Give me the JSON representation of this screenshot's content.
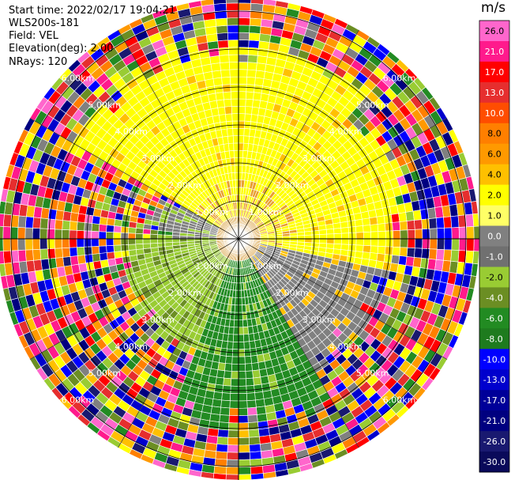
{
  "info": {
    "start_time": "Start time: 2022/02/17 19:04:21",
    "instrument": "WLS200s-181",
    "field": "Field: VEL",
    "elevation": "Elevation(deg): 2.00",
    "nrays": "NRays: 120"
  },
  "chart_data": {
    "type": "ppi",
    "title": "Start time: 2022/02/17 19:04:21",
    "field": "VEL",
    "elevation_deg": 2.0,
    "n_rays": 120,
    "range_unit": "km",
    "range_rings_km": [
      1,
      2,
      3,
      4,
      5,
      6
    ],
    "range_labels": [
      "1.00km",
      "2.00km",
      "3.00km",
      "4.00km",
      "5.00km",
      "6.00km"
    ],
    "max_range_km": 6.6,
    "colorbar": {
      "unit": "m/s",
      "ticks": [
        "26.0",
        "21.0",
        "17.0",
        "13.0",
        "10.0",
        "8.0",
        "6.0",
        "4.0",
        "2.0",
        "1.0",
        "0.0",
        "-1.0",
        "-2.0",
        "-4.0",
        "-6.0",
        "-8.0",
        "-10.0",
        "-13.0",
        "-17.0",
        "-21.0",
        "-26.0",
        "-30.0"
      ],
      "bin_colors": [
        "#ff66cc",
        "#ff1a8c",
        "#ff0000",
        "#e62e2e",
        "#ff4d00",
        "#ff7f00",
        "#ff9900",
        "#ffc000",
        "#ffff00",
        "#ffff66",
        "#808080",
        "#707070",
        "#99cc33",
        "#6b8e23",
        "#228b22",
        "#1e7b1e",
        "#0000ff",
        "#0000cd",
        "#000099",
        "#000080",
        "#191970",
        "#0a0a5a"
      ]
    },
    "pattern_description_sectors": [
      {
        "azimuth_from": 300,
        "azimuth_to": 360,
        "dominant_range_km": [
          0,
          5
        ],
        "velocity_ms": 4.0
      },
      {
        "azimuth_from": 0,
        "azimuth_to": 100,
        "dominant_range_km": [
          0,
          4.5
        ],
        "velocity_ms": 4.0
      },
      {
        "azimuth_from": 100,
        "azimuth_to": 150,
        "dominant_range_km": [
          0,
          4
        ],
        "velocity_ms": 0.0
      },
      {
        "azimuth_from": 150,
        "azimuth_to": 200,
        "dominant_range_km": [
          0,
          4.5
        ],
        "velocity_ms": -6.0
      },
      {
        "azimuth_from": 200,
        "azimuth_to": 270,
        "dominant_range_km": [
          0,
          3
        ],
        "velocity_ms": -2.0
      },
      {
        "azimuth_from": 270,
        "azimuth_to": 300,
        "dominant_range_km": [
          0,
          2
        ],
        "velocity_ms": 0.0
      }
    ]
  }
}
